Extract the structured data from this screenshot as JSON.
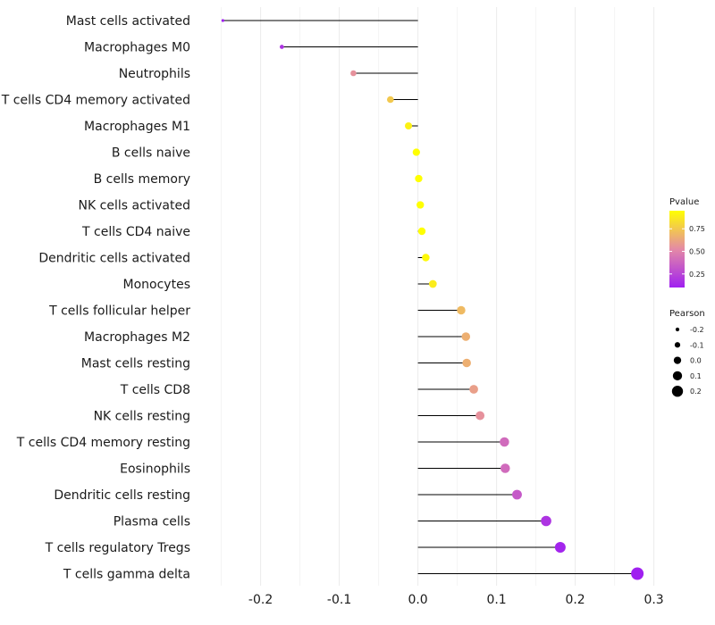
{
  "chart_data": {
    "type": "lollipop",
    "categories": [
      "Mast cells activated",
      "Macrophages M0",
      "Neutrophils",
      "T cells CD4 memory activated",
      "Macrophages M1",
      "B cells naive",
      "B cells memory",
      "NK cells activated",
      "T cells CD4 naive",
      "Dendritic cells activated",
      "Monocytes",
      "T cells follicular helper",
      "Macrophages M2",
      "Mast cells resting",
      "T cells CD8",
      "NK cells resting",
      "T cells CD4 memory resting",
      "Eosinophils",
      "Dendritic cells resting",
      "Plasma cells",
      "T cells regulatory  Tregs",
      "T cells gamma delta"
    ],
    "values": [
      -0.248,
      -0.173,
      -0.082,
      -0.035,
      -0.012,
      -0.002,
      0.001,
      0.003,
      0.005,
      0.01,
      0.019,
      0.055,
      0.061,
      0.062,
      0.071,
      0.079,
      0.11,
      0.111,
      0.126,
      0.163,
      0.181,
      0.279
    ],
    "pvalues": [
      0.05,
      0.18,
      0.55,
      0.75,
      0.9,
      0.98,
      0.99,
      0.97,
      0.96,
      0.93,
      0.88,
      0.7,
      0.66,
      0.66,
      0.6,
      0.55,
      0.4,
      0.4,
      0.33,
      0.18,
      0.12,
      0.02
    ],
    "xlim": [
      -0.27,
      0.305
    ],
    "xticks": [
      -0.2,
      -0.1,
      0.0,
      0.1,
      0.2,
      0.3
    ],
    "xtick_labels": [
      "-0.2",
      "-0.1",
      "0.0",
      "0.1",
      "0.2",
      "0.3"
    ],
    "xlabel": "",
    "ylabel": "",
    "title": "",
    "color_legend": {
      "title": "Pvalue",
      "range": [
        0.1,
        0.95
      ],
      "ticks": [
        0.25,
        0.5,
        0.75
      ],
      "tick_labels": [
        "0.25",
        "0.50",
        "0.75"
      ],
      "low_color": "#a020f0",
      "mid_color": "#e48aa6",
      "high_color": "#ffff00"
    },
    "size_legend": {
      "title": "Pearson",
      "values": [
        -0.2,
        -0.1,
        0.0,
        0.1,
        0.2
      ],
      "labels": [
        "-0.2",
        "-0.1",
        "0.0",
        "0.1",
        "0.2"
      ]
    },
    "legend_position": "right"
  }
}
